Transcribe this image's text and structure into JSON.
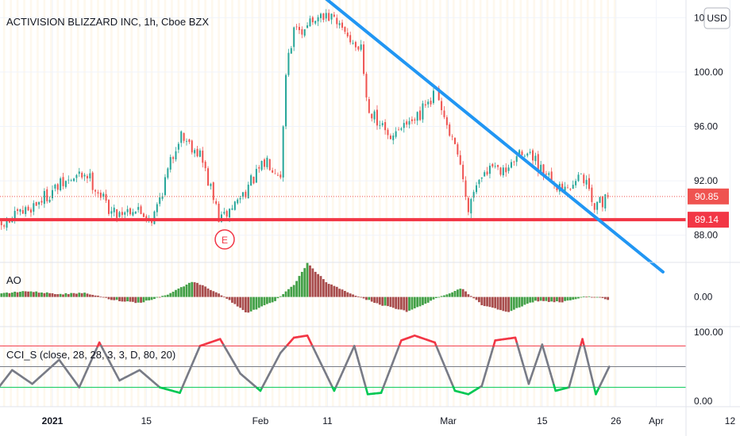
{
  "header": {
    "title": "ACTIVISION BLIZZARD INC, 1h, Cboe BZX",
    "currency_button": "USD"
  },
  "colors": {
    "up": "#26a69a",
    "down": "#ef5350",
    "ao_up": "#43a047",
    "ao_down": "#a84c4c",
    "trendline": "#2196f3",
    "support": "#f23645",
    "cci_high": "#f23645",
    "cci_mid": "#787b86",
    "cci_low": "#00c853",
    "earnings": "#f23645"
  },
  "chart_data": [
    {
      "type": "candlestick",
      "name": "price",
      "y_ticks": [
        "104.00",
        "100.00",
        "96.00",
        "92.00",
        "88.00"
      ],
      "ylim": [
        86.0,
        105.3
      ],
      "x_ticks": [
        "2021",
        "15",
        "Feb",
        "11",
        "Mar",
        "15",
        "26",
        "Apr",
        "12"
      ],
      "last_price_label": "90.85",
      "support_level": 89.14,
      "support_label": "89.14",
      "earnings_marker": "E",
      "trendline": {
        "from_date": "2021-02-08",
        "from_value": 106.5,
        "to_date": "2021-04-02",
        "to_value": 85.3
      },
      "path_dates": [
        "2020-12-24",
        "2020-12-28",
        "2021-01-02",
        "2021-01-06",
        "2021-01-10",
        "2021-01-13",
        "2021-01-16",
        "2021-01-20",
        "2021-01-23",
        "2021-01-26",
        "2021-01-29",
        "2021-02-02",
        "2021-02-04",
        "2021-02-05",
        "2021-02-06",
        "2021-02-08",
        "2021-02-11",
        "2021-02-13",
        "2021-02-16",
        "2021-02-17",
        "2021-02-20",
        "2021-02-24",
        "2021-02-27",
        "2021-03-02",
        "2021-03-04",
        "2021-03-06",
        "2021-03-10",
        "2021-03-13",
        "2021-03-15",
        "2021-03-19",
        "2021-03-21",
        "2021-03-23",
        "2021-03-25"
      ],
      "path_values": [
        88.5,
        89.8,
        91.6,
        92.6,
        89.6,
        90.0,
        89.2,
        95.5,
        94.0,
        89.0,
        90.8,
        93.5,
        92.6,
        101.0,
        103.0,
        103.5,
        104.0,
        103.3,
        101.6,
        97.2,
        95.5,
        96.2,
        98.6,
        94.3,
        90.2,
        92.5,
        93.2,
        94.3,
        92.6,
        91.0,
        92.5,
        90.0,
        90.85
      ]
    },
    {
      "type": "bar",
      "name": "AO",
      "label": "AO",
      "y_ticks": [
        "0.00"
      ],
      "ylim": [
        -3.0,
        3.5
      ],
      "path_dates": [
        "2020-12-24",
        "2020-12-28",
        "2021-01-02",
        "2021-01-06",
        "2021-01-10",
        "2021-01-14",
        "2021-01-18",
        "2021-01-22",
        "2021-01-26",
        "2021-01-30",
        "2021-02-03",
        "2021-02-06",
        "2021-02-08",
        "2021-02-11",
        "2021-02-15",
        "2021-02-19",
        "2021-02-23",
        "2021-02-27",
        "2021-03-03",
        "2021-03-06",
        "2021-03-10",
        "2021-03-14",
        "2021-03-18",
        "2021-03-22",
        "2021-03-25"
      ],
      "path_values": [
        0.3,
        0.6,
        0.3,
        0.4,
        -0.3,
        -0.6,
        0.2,
        1.6,
        0.3,
        -1.6,
        -0.5,
        1.2,
        3.4,
        1.4,
        0.2,
        -0.8,
        -1.5,
        -0.2,
        0.9,
        -0.8,
        -1.5,
        -0.4,
        -0.5,
        0.1,
        -0.3
      ]
    },
    {
      "type": "line",
      "name": "CCI_S",
      "label": "CCI_S (close, 28, 28, 3, 3, D, 80, 20)",
      "y_ticks": [
        "100.00",
        "0.00"
      ],
      "ylim": [
        -8,
        108
      ],
      "levels": [
        80,
        50,
        20
      ],
      "path_dates": [
        "2020-12-24",
        "2020-12-26",
        "2020-12-29",
        "2021-01-02",
        "2021-01-05",
        "2021-01-08",
        "2021-01-11",
        "2021-01-14",
        "2021-01-17",
        "2021-01-20",
        "2021-01-23",
        "2021-01-26",
        "2021-01-29",
        "2021-02-01",
        "2021-02-04",
        "2021-02-06",
        "2021-02-08",
        "2021-02-10",
        "2021-02-12",
        "2021-02-15",
        "2021-02-17",
        "2021-02-19",
        "2021-02-22",
        "2021-02-24",
        "2021-02-27",
        "2021-03-02",
        "2021-03-04",
        "2021-03-06",
        "2021-03-08",
        "2021-03-11",
        "2021-03-13",
        "2021-03-15",
        "2021-03-17",
        "2021-03-19",
        "2021-03-21",
        "2021-03-23",
        "2021-03-25"
      ],
      "path_values": [
        20,
        45,
        25,
        60,
        20,
        85,
        30,
        45,
        20,
        12,
        80,
        90,
        40,
        15,
        70,
        92,
        95,
        55,
        15,
        80,
        10,
        12,
        88,
        95,
        85,
        15,
        10,
        22,
        88,
        92,
        25,
        82,
        15,
        20,
        90,
        10,
        50
      ]
    }
  ]
}
